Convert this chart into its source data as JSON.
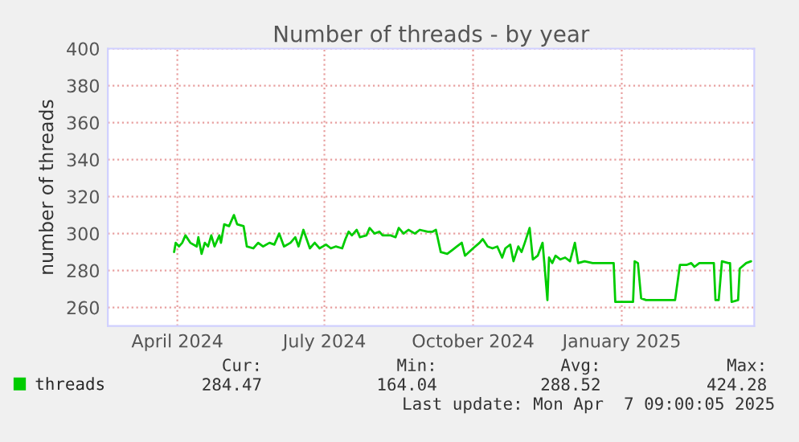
{
  "chart_data": {
    "type": "line",
    "title": "Number of threads - by year",
    "ylabel": "number of threads",
    "x": [
      "2024-04-13",
      "2024-04-14",
      "2024-04-16",
      "2024-04-18",
      "2024-04-20",
      "2024-04-23",
      "2024-04-27",
      "2024-04-28",
      "2024-04-30",
      "2024-05-02",
      "2024-05-04",
      "2024-05-06",
      "2024-05-08",
      "2024-05-11",
      "2024-05-12",
      "2024-05-14",
      "2024-05-17",
      "2024-05-20",
      "2024-05-22",
      "2024-05-26",
      "2024-05-28",
      "2024-06-01",
      "2024-06-04",
      "2024-06-07",
      "2024-06-11",
      "2024-06-14",
      "2024-06-17",
      "2024-06-20",
      "2024-06-24",
      "2024-06-27",
      "2024-06-29",
      "2024-07-02",
      "2024-07-06",
      "2024-07-09",
      "2024-07-12",
      "2024-07-16",
      "2024-07-19",
      "2024-07-22",
      "2024-07-26",
      "2024-07-28",
      "2024-07-30",
      "2024-08-01",
      "2024-08-04",
      "2024-08-06",
      "2024-08-10",
      "2024-08-12",
      "2024-08-15",
      "2024-08-18",
      "2024-08-20",
      "2024-08-25",
      "2024-08-28",
      "2024-08-30",
      "2024-09-02",
      "2024-09-05",
      "2024-09-09",
      "2024-09-12",
      "2024-09-17",
      "2024-09-20",
      "2024-09-22",
      "2024-09-25",
      "2024-09-29",
      "2024-10-02",
      "2024-10-05",
      "2024-10-08",
      "2024-10-10",
      "2024-10-15",
      "2024-10-19",
      "2024-10-21",
      "2024-10-24",
      "2024-10-27",
      "2024-10-30",
      "2024-11-02",
      "2024-11-04",
      "2024-11-07",
      "2024-11-09",
      "2024-11-12",
      "2024-11-14",
      "2024-11-16",
      "2024-11-19",
      "2024-11-21",
      "2024-11-24",
      "2024-11-27",
      "2024-11-28",
      "2024-11-30",
      "2024-12-01",
      "2024-12-03",
      "2024-12-05",
      "2024-12-08",
      "2024-12-11",
      "2024-12-14",
      "2024-12-17",
      "2024-12-19",
      "2024-12-23",
      "2024-12-28",
      "2025-01-10",
      "2025-01-11",
      "2025-01-18",
      "2025-01-22",
      "2025-01-23",
      "2025-01-25",
      "2025-01-27",
      "2025-01-30",
      "2025-02-09",
      "2025-02-17",
      "2025-02-20",
      "2025-02-24",
      "2025-02-27",
      "2025-03-01",
      "2025-03-04",
      "2025-03-11",
      "2025-03-13",
      "2025-03-14",
      "2025-03-16",
      "2025-03-18",
      "2025-03-22",
      "2025-03-23",
      "2025-03-24",
      "2025-03-28",
      "2025-03-29",
      "2025-04-02",
      "2025-04-05"
    ],
    "series": [
      {
        "name": "threads",
        "color": "#00cc00",
        "values": [
          290,
          295,
          293,
          295,
          299,
          295,
          293,
          298,
          289,
          295,
          293,
          299,
          293,
          299,
          295,
          305,
          304,
          310,
          305,
          304,
          293,
          292,
          295,
          293,
          295,
          294,
          300,
          293,
          295,
          298,
          293,
          302,
          292,
          295,
          292,
          294,
          292,
          293,
          292,
          297,
          301,
          299,
          302,
          298,
          299,
          303,
          300,
          301,
          299,
          299,
          298,
          303,
          300,
          302,
          300,
          302,
          301,
          301,
          302,
          290,
          289,
          291,
          293,
          295,
          288,
          292,
          295,
          297,
          293,
          292,
          293,
          287,
          292,
          294,
          285,
          293,
          290,
          295,
          303,
          286,
          288,
          295,
          285,
          264,
          287,
          284,
          288,
          286,
          287,
          285,
          295,
          284,
          285,
          284,
          284,
          263,
          263,
          263,
          285,
          284,
          265,
          264,
          264,
          264,
          283,
          283,
          284,
          282,
          284,
          284,
          284,
          264,
          264,
          285,
          284,
          284,
          263,
          264,
          281,
          284,
          285
        ]
      }
    ],
    "xlim": [
      "2024-03-03",
      "2025-04-07"
    ],
    "xticks": [
      {
        "value": "2024-04-15",
        "label": "April 2024"
      },
      {
        "value": "2024-07-15",
        "label": "July 2024"
      },
      {
        "value": "2024-10-15",
        "label": "October 2024"
      },
      {
        "value": "2025-01-15",
        "label": "January 2025"
      }
    ],
    "ylim": [
      250,
      400
    ],
    "yticks": [
      260,
      280,
      300,
      320,
      340,
      360,
      380,
      400
    ],
    "grid": true,
    "legend": "bottom",
    "line_style": "solid",
    "marker": "none",
    "annotations": [
      "Cur:",
      "Min:",
      "Avg:",
      "Max:",
      "284.47",
      "164.04",
      "288.52",
      "424.28",
      "Last update: Mon Apr  7 09:00:05 2025"
    ]
  }
}
